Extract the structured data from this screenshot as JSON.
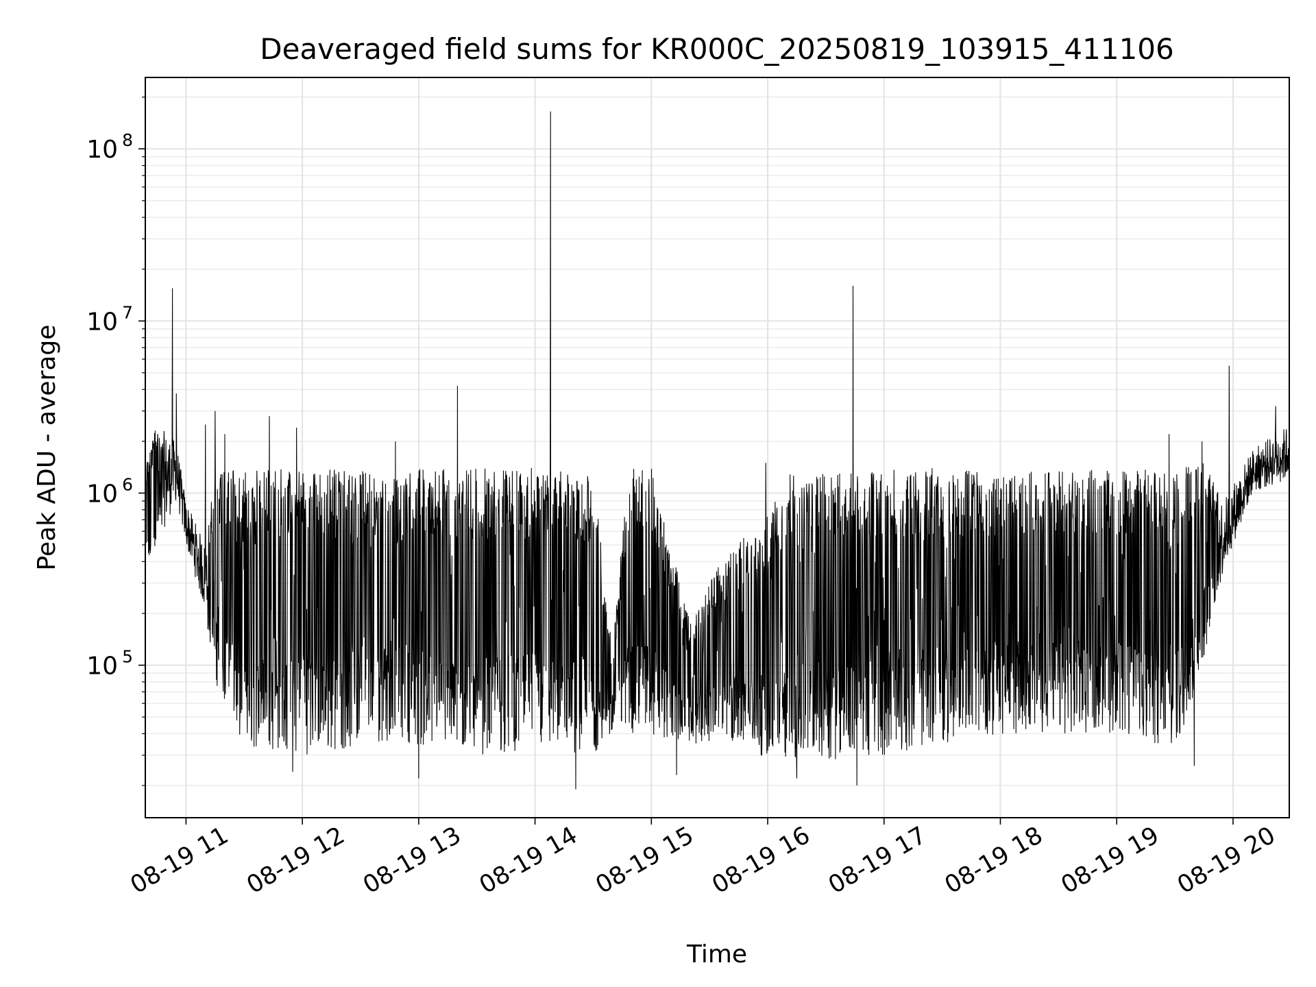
{
  "chart_data": {
    "type": "line",
    "title": "Deaveraged field sums for KR000C_20250819_103915_411106",
    "xlabel": "Time",
    "ylabel": "Peak ADU - average",
    "y_scale": "log",
    "grid": true,
    "x_range": [
      "2025-08-19 10:39",
      "2025-08-19 20:29"
    ],
    "ylim": [
      13000,
      260000000
    ],
    "x_ticks": [
      {
        "t": "2025-08-19 11:00",
        "label": "08-19 11"
      },
      {
        "t": "2025-08-19 12:00",
        "label": "08-19 12"
      },
      {
        "t": "2025-08-19 13:00",
        "label": "08-19 13"
      },
      {
        "t": "2025-08-19 14:00",
        "label": "08-19 14"
      },
      {
        "t": "2025-08-19 15:00",
        "label": "08-19 15"
      },
      {
        "t": "2025-08-19 16:00",
        "label": "08-19 16"
      },
      {
        "t": "2025-08-19 17:00",
        "label": "08-19 17"
      },
      {
        "t": "2025-08-19 18:00",
        "label": "08-19 18"
      },
      {
        "t": "2025-08-19 19:00",
        "label": "08-19 19"
      },
      {
        "t": "2025-08-19 20:00",
        "label": "08-19 20"
      }
    ],
    "y_ticks": [
      {
        "value": 100000,
        "mantissa": "10",
        "exponent": "5"
      },
      {
        "value": 1000000,
        "mantissa": "10",
        "exponent": "6"
      },
      {
        "value": 10000000,
        "mantissa": "10",
        "exponent": "7"
      },
      {
        "value": 100000000,
        "mantissa": "10",
        "exponent": "8"
      }
    ],
    "series_color": "#000000",
    "envelope": [
      {
        "t": "2025-08-19 10:39",
        "low": 300000,
        "high": 1500000
      },
      {
        "t": "2025-08-19 10:45",
        "low": 500000,
        "high": 2500000
      },
      {
        "t": "2025-08-19 10:55",
        "low": 900000,
        "high": 2000000
      },
      {
        "t": "2025-08-19 11:00",
        "low": 500000,
        "high": 900000
      },
      {
        "t": "2025-08-19 11:10",
        "low": 200000,
        "high": 500000
      },
      {
        "t": "2025-08-19 11:15",
        "low": 80000,
        "high": 1300000
      },
      {
        "t": "2025-08-19 11:30",
        "low": 33000,
        "high": 1400000
      },
      {
        "t": "2025-08-19 12:00",
        "low": 30000,
        "high": 1400000
      },
      {
        "t": "2025-08-19 12:30",
        "low": 33000,
        "high": 1350000
      },
      {
        "t": "2025-08-19 12:50",
        "low": 38000,
        "high": 1200000
      },
      {
        "t": "2025-08-19 13:00",
        "low": 33000,
        "high": 1400000
      },
      {
        "t": "2025-08-19 13:30",
        "low": 30000,
        "high": 1400000
      },
      {
        "t": "2025-08-19 14:00",
        "low": 32000,
        "high": 1400000
      },
      {
        "t": "2025-08-19 14:30",
        "low": 30000,
        "high": 1300000
      },
      {
        "t": "2025-08-19 14:40",
        "low": 40000,
        "high": 120000
      },
      {
        "t": "2025-08-19 14:48",
        "low": 40000,
        "high": 1400000
      },
      {
        "t": "2025-08-19 15:00",
        "low": 38000,
        "high": 1400000
      },
      {
        "t": "2025-08-19 15:20",
        "low": 35000,
        "high": 180000
      },
      {
        "t": "2025-08-19 15:40",
        "low": 35000,
        "high": 500000
      },
      {
        "t": "2025-08-19 15:55",
        "low": 30000,
        "high": 600000
      },
      {
        "t": "2025-08-19 16:10",
        "low": 28000,
        "high": 1300000
      },
      {
        "t": "2025-08-19 16:30",
        "low": 28000,
        "high": 1300000
      },
      {
        "t": "2025-08-19 17:00",
        "low": 30000,
        "high": 1400000
      },
      {
        "t": "2025-08-19 17:30",
        "low": 35000,
        "high": 1400000
      },
      {
        "t": "2025-08-19 18:00",
        "low": 40000,
        "high": 1350000
      },
      {
        "t": "2025-08-19 18:30",
        "low": 40000,
        "high": 1400000
      },
      {
        "t": "2025-08-19 19:00",
        "low": 40000,
        "high": 1350000
      },
      {
        "t": "2025-08-19 19:30",
        "low": 30000,
        "high": 1400000
      },
      {
        "t": "2025-08-19 19:45",
        "low": 100000,
        "high": 1500000
      },
      {
        "t": "2025-08-19 19:55",
        "low": 350000,
        "high": 900000
      },
      {
        "t": "2025-08-19 20:10",
        "low": 1000000,
        "high": 1800000
      },
      {
        "t": "2025-08-19 20:29",
        "low": 1200000,
        "high": 2500000
      }
    ],
    "spikes": [
      {
        "t": "2025-08-19 10:53",
        "value": 15500000
      },
      {
        "t": "2025-08-19 10:55",
        "value": 3800000
      },
      {
        "t": "2025-08-19 11:10",
        "value": 2500000
      },
      {
        "t": "2025-08-19 11:15",
        "value": 3000000
      },
      {
        "t": "2025-08-19 11:20",
        "value": 2200000
      },
      {
        "t": "2025-08-19 11:43",
        "value": 2800000
      },
      {
        "t": "2025-08-19 11:57",
        "value": 2400000
      },
      {
        "t": "2025-08-19 12:48",
        "value": 2000000
      },
      {
        "t": "2025-08-19 13:20",
        "value": 4200000
      },
      {
        "t": "2025-08-19 14:08",
        "value": 165000000
      },
      {
        "t": "2025-08-19 15:59",
        "value": 1500000
      },
      {
        "t": "2025-08-19 16:44",
        "value": 16000000
      },
      {
        "t": "2025-08-19 19:27",
        "value": 2200000
      },
      {
        "t": "2025-08-19 19:44",
        "value": 2000000
      },
      {
        "t": "2025-08-19 19:58",
        "value": 5500000
      },
      {
        "t": "2025-08-19 20:22",
        "value": 3200000
      },
      {
        "t": "2025-08-19 11:55",
        "value": 24000
      },
      {
        "t": "2025-08-19 13:00",
        "value": 22000
      },
      {
        "t": "2025-08-19 14:21",
        "value": 19000
      },
      {
        "t": "2025-08-19 15:13",
        "value": 23000
      },
      {
        "t": "2025-08-19 16:15",
        "value": 22000
      },
      {
        "t": "2025-08-19 16:46",
        "value": 20000
      },
      {
        "t": "2025-08-19 19:40",
        "value": 26000
      }
    ]
  }
}
